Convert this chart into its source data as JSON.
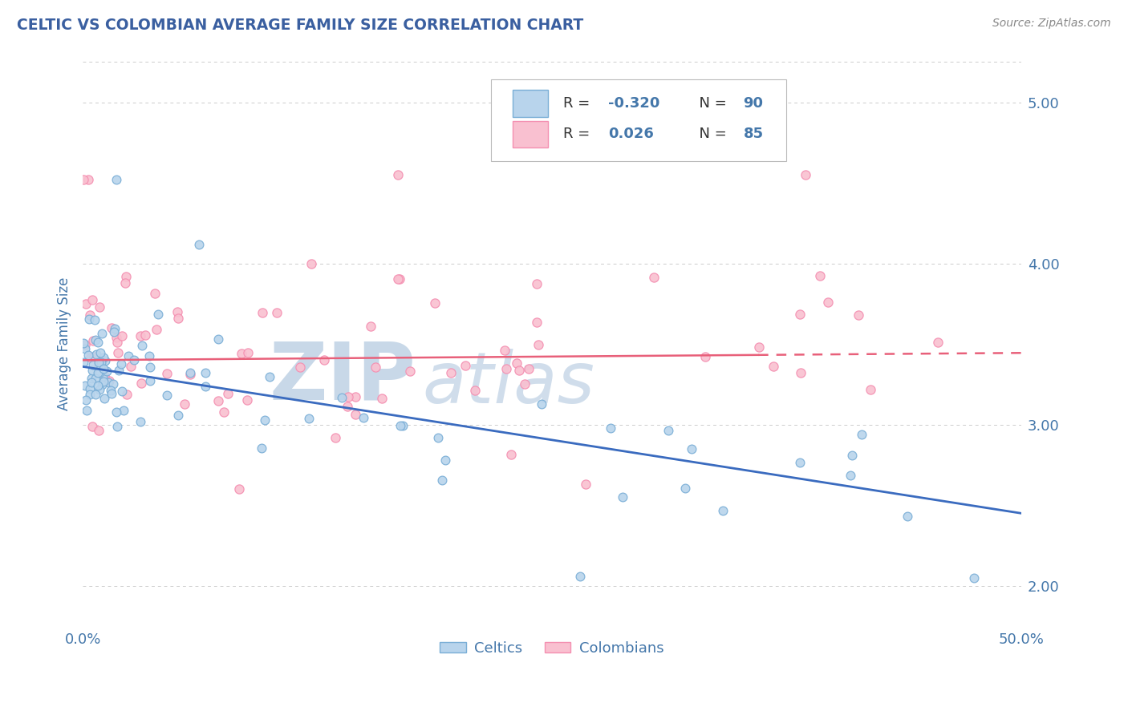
{
  "title": "CELTIC VS COLOMBIAN AVERAGE FAMILY SIZE CORRELATION CHART",
  "source_text": "Source: ZipAtlas.com",
  "ylabel": "Average Family Size",
  "xmin": 0.0,
  "xmax": 50.0,
  "ymin": 1.75,
  "ymax": 5.25,
  "yticks": [
    2.0,
    3.0,
    4.0,
    5.0
  ],
  "xticks": [
    0.0,
    50.0
  ],
  "xticklabels": [
    "0.0%",
    "50.0%"
  ],
  "celtics_color": "#7aaed6",
  "colombians_color": "#f48fb1",
  "celtics_fill": "#b8d4ec",
  "colombians_fill": "#f9c0d0",
  "regression_blue_color": "#3a6bbf",
  "regression_pink_color": "#e8607a",
  "title_color": "#3a5fa0",
  "axis_color": "#4477AA",
  "watermark_zip_color": "#c8d8e8",
  "watermark_atlas_color": "#c8d8e8",
  "background_color": "#FFFFFF",
  "grid_color": "#CCCCCC",
  "celtics_label": "Celtics",
  "colombians_label": "Colombians",
  "blue_line_y0": 3.36,
  "blue_line_y50": 2.45,
  "pink_line_y0": 3.4,
  "pink_line_y50": 3.445,
  "pink_solid_end_x": 36.0
}
